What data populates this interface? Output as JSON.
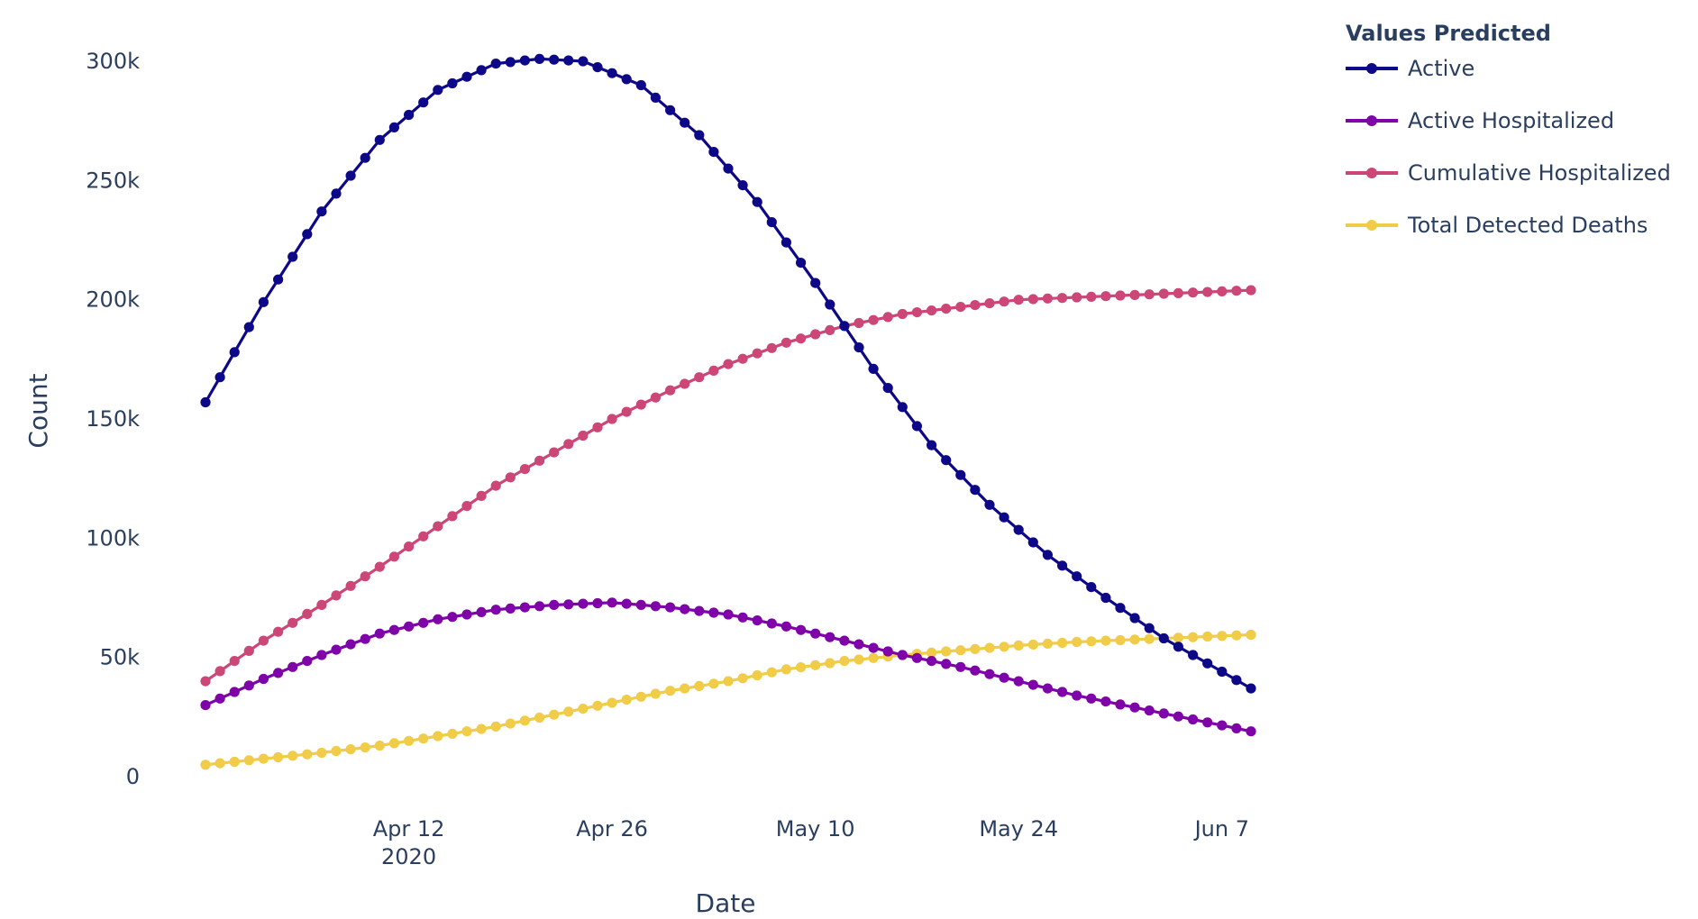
{
  "chart_data": {
    "type": "line",
    "xlabel": "Date",
    "ylabel": "Count",
    "x_range": [
      "2020-03-29",
      "2020-06-09"
    ],
    "x_ticks": [
      {
        "date": "2020-04-12",
        "label": "Apr 12",
        "sublabel": "2020"
      },
      {
        "date": "2020-04-26",
        "label": "Apr 26",
        "sublabel": ""
      },
      {
        "date": "2020-05-10",
        "label": "May 10",
        "sublabel": ""
      },
      {
        "date": "2020-05-24",
        "label": "May 24",
        "sublabel": ""
      },
      {
        "date": "2020-06-07",
        "label": "Jun 7",
        "sublabel": ""
      }
    ],
    "ylim": [
      0,
      300000
    ],
    "y_ticks": [
      {
        "value": 0,
        "label": "0"
      },
      {
        "value": 50000,
        "label": "50k"
      },
      {
        "value": 100000,
        "label": "100k"
      },
      {
        "value": 150000,
        "label": "150k"
      },
      {
        "value": 200000,
        "label": "200k"
      },
      {
        "value": 250000,
        "label": "250k"
      },
      {
        "value": 300000,
        "label": "300k"
      }
    ],
    "legend": {
      "title": "Values Predicted",
      "placement": "top-right, outside plot"
    },
    "series": [
      {
        "name": "Active",
        "color": "#0d0887",
        "points": [
          [
            "2020-03-29",
            157000
          ],
          [
            "2020-04-02",
            199000
          ],
          [
            "2020-04-06",
            237000
          ],
          [
            "2020-04-10",
            267000
          ],
          [
            "2020-04-14",
            288000
          ],
          [
            "2020-04-18",
            299000
          ],
          [
            "2020-04-21",
            301000
          ],
          [
            "2020-04-24",
            300000
          ],
          [
            "2020-04-28",
            290000
          ],
          [
            "2020-05-02",
            269000
          ],
          [
            "2020-05-06",
            241000
          ],
          [
            "2020-05-10",
            207000
          ],
          [
            "2020-05-14",
            171000
          ],
          [
            "2020-05-18",
            139000
          ],
          [
            "2020-05-22",
            114000
          ],
          [
            "2020-05-26",
            93000
          ],
          [
            "2020-05-30",
            75000
          ],
          [
            "2020-06-03",
            58000
          ],
          [
            "2020-06-07",
            44000
          ],
          [
            "2020-06-09",
            37000
          ]
        ]
      },
      {
        "name": "Active Hospitalized",
        "color": "#7e03a8",
        "points": [
          [
            "2020-03-29",
            30000
          ],
          [
            "2020-04-02",
            41000
          ],
          [
            "2020-04-06",
            51000
          ],
          [
            "2020-04-10",
            60000
          ],
          [
            "2020-04-14",
            66000
          ],
          [
            "2020-04-18",
            70000
          ],
          [
            "2020-04-22",
            72000
          ],
          [
            "2020-04-26",
            73000
          ],
          [
            "2020-04-30",
            71000
          ],
          [
            "2020-05-04",
            68000
          ],
          [
            "2020-05-08",
            63000
          ],
          [
            "2020-05-12",
            57000
          ],
          [
            "2020-05-16",
            51000
          ],
          [
            "2020-05-20",
            46000
          ],
          [
            "2020-05-24",
            40000
          ],
          [
            "2020-05-28",
            34000
          ],
          [
            "2020-06-01",
            29000
          ],
          [
            "2020-06-05",
            24000
          ],
          [
            "2020-06-09",
            19000
          ]
        ]
      },
      {
        "name": "Cumulative Hospitalized",
        "color": "#cc4778",
        "points": [
          [
            "2020-03-29",
            40000
          ],
          [
            "2020-04-02",
            57000
          ],
          [
            "2020-04-06",
            72000
          ],
          [
            "2020-04-10",
            88000
          ],
          [
            "2020-04-14",
            105000
          ],
          [
            "2020-04-18",
            122000
          ],
          [
            "2020-04-22",
            136000
          ],
          [
            "2020-04-26",
            150000
          ],
          [
            "2020-04-30",
            162000
          ],
          [
            "2020-05-04",
            173000
          ],
          [
            "2020-05-08",
            182000
          ],
          [
            "2020-05-12",
            189000
          ],
          [
            "2020-05-16",
            194000
          ],
          [
            "2020-05-20",
            197000
          ],
          [
            "2020-05-24",
            200000
          ],
          [
            "2020-05-28",
            201000
          ],
          [
            "2020-06-01",
            202000
          ],
          [
            "2020-06-05",
            203000
          ],
          [
            "2020-06-09",
            204000
          ]
        ]
      },
      {
        "name": "Total Detected Deaths",
        "color": "#f0cc48",
        "points": [
          [
            "2020-03-29",
            5000
          ],
          [
            "2020-04-02",
            7500
          ],
          [
            "2020-04-06",
            10000
          ],
          [
            "2020-04-10",
            13000
          ],
          [
            "2020-04-14",
            17000
          ],
          [
            "2020-04-18",
            21000
          ],
          [
            "2020-04-22",
            26000
          ],
          [
            "2020-04-26",
            31000
          ],
          [
            "2020-04-30",
            36000
          ],
          [
            "2020-05-04",
            40000
          ],
          [
            "2020-05-08",
            45000
          ],
          [
            "2020-05-12",
            48500
          ],
          [
            "2020-05-16",
            51000
          ],
          [
            "2020-05-20",
            53000
          ],
          [
            "2020-05-24",
            55000
          ],
          [
            "2020-05-28",
            56500
          ],
          [
            "2020-06-01",
            57500
          ],
          [
            "2020-06-05",
            58500
          ],
          [
            "2020-06-09",
            59500
          ]
        ]
      }
    ]
  }
}
